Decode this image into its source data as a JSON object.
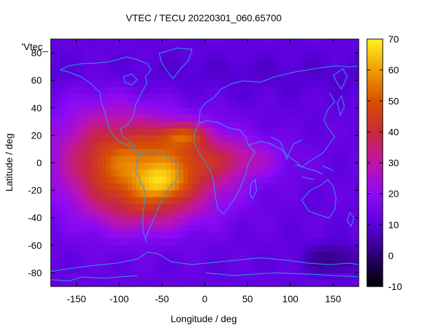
{
  "chart_data": {
    "type": "heatmap",
    "title": "VTEC / TECU 20220301_060.65700",
    "xlabel": "Longitude / deg",
    "ylabel": "Latitude / deg",
    "xlim": [
      -180,
      180
    ],
    "ylim": [
      -90,
      90
    ],
    "x_ticks": [
      -150,
      -100,
      -50,
      0,
      50,
      100,
      150
    ],
    "y_ticks": [
      80,
      60,
      40,
      20,
      0,
      -20,
      -40,
      -60,
      -80
    ],
    "series_label": "'Vtec_",
    "colorbar": {
      "range": [
        -10,
        70
      ],
      "ticks": [
        70,
        60,
        50,
        40,
        30,
        20,
        10,
        0,
        -10
      ],
      "palette": "black-blue-purple-red-orange-yellow"
    },
    "background_level": 12,
    "blobs": [
      {
        "name": "equatorial anomaly core (South America)",
        "lon": -50,
        "lat": -5,
        "sigma_lon": 55,
        "sigma_lat": 22,
        "amplitude": 38
      },
      {
        "name": "western Pacific extension",
        "lon": -120,
        "lat": 5,
        "sigma_lon": 45,
        "sigma_lat": 30,
        "amplitude": 20
      },
      {
        "name": "northern crest peak",
        "lon": -25,
        "lat": 20,
        "sigma_lon": 20,
        "sigma_lat": 6,
        "amplitude": 20
      },
      {
        "name": "southern crest peak",
        "lon": -50,
        "lat": -15,
        "sigma_lon": 18,
        "sigma_lat": 8,
        "amplitude": 14
      },
      {
        "name": "Atlantic/Africa tail",
        "lon": 40,
        "lat": 3,
        "sigma_lon": 40,
        "sigma_lat": 10,
        "amplitude": 12
      },
      {
        "name": "southern mid-latitude lobe",
        "lon": -70,
        "lat": -35,
        "sigma_lon": 40,
        "sigma_lat": 12,
        "amplitude": 10
      }
    ],
    "min_value_region": {
      "lon": 150,
      "lat": -70,
      "value": 2
    }
  }
}
